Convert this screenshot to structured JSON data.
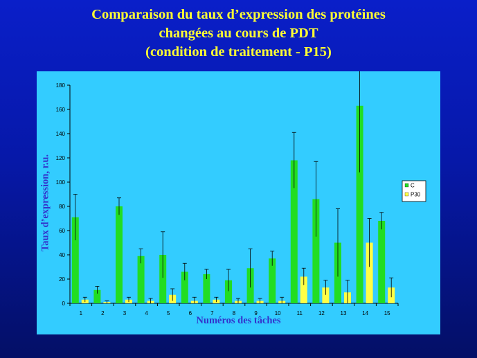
{
  "title": {
    "line1": "Comparaison du taux d’expression des protéines",
    "line2": "changées au cours de PDT",
    "line3": "(condition de traitement - P15)"
  },
  "colors": {
    "background": "#0618a8",
    "title": "#ffff33",
    "panel": "#33ccff",
    "axis_labels": "#3333cc",
    "series_c": "#22dd22",
    "series_p30": "#ffff44"
  },
  "chart_data": {
    "type": "bar",
    "xlabel": "Numéros des tâches",
    "ylabel": "Taux d’expression, r.u.",
    "ylim": [
      0,
      180
    ],
    "yticks": [
      0,
      20,
      40,
      60,
      80,
      100,
      120,
      140,
      160,
      180
    ],
    "categories": [
      "1",
      "2",
      "3",
      "4",
      "5",
      "6",
      "7",
      "8",
      "9",
      "10",
      "11",
      "12",
      "13",
      "14",
      "15"
    ],
    "grid": false,
    "legend_position": "right",
    "series": [
      {
        "name": "C",
        "color": "#22dd22",
        "values": [
          71,
          11,
          80,
          39,
          40,
          26,
          24,
          19,
          29,
          37,
          118,
          86,
          50,
          163,
          68
        ],
        "error": [
          19,
          3,
          7,
          6,
          19,
          7,
          4,
          9,
          16,
          6,
          23,
          31,
          28,
          55,
          7
        ]
      },
      {
        "name": "P30",
        "color": "#ffff44",
        "values": [
          3,
          1,
          3,
          2,
          7,
          2,
          3,
          2,
          2,
          2,
          22,
          13,
          9,
          50,
          13
        ],
        "error": [
          2,
          1,
          2,
          2,
          5,
          3,
          2,
          2,
          2,
          3,
          7,
          6,
          10,
          20,
          8
        ]
      }
    ]
  }
}
